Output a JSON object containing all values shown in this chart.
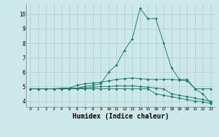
{
  "bg_color": "#cce8e8",
  "grid_color": "#aacccc",
  "line_color": "#1a7a6e",
  "xlabel": "Humidex (Indice chaleur)",
  "xlabel_fontsize": 7,
  "ytick_labels": [
    "4",
    "5",
    "6",
    "7",
    "8",
    "9",
    "10"
  ],
  "ytick_vals": [
    4,
    5,
    6,
    7,
    8,
    9,
    10
  ],
  "xtick_labels": [
    "0",
    "1",
    "2",
    "3",
    "4",
    "5",
    "6",
    "7",
    "8",
    "9",
    "10",
    "11",
    "12",
    "13",
    "14",
    "15",
    "16",
    "17",
    "18",
    "19",
    "20",
    "21",
    "22",
    "23"
  ],
  "ylim": [
    3.6,
    10.7
  ],
  "xlim": [
    -0.5,
    23.5
  ],
  "series": [
    [
      4.85,
      4.85,
      4.85,
      4.85,
      4.9,
      4.9,
      4.9,
      5.0,
      5.1,
      5.2,
      6.0,
      6.5,
      7.5,
      8.3,
      10.4,
      9.7,
      9.7,
      8.0,
      6.3,
      5.5,
      5.5,
      4.85,
      4.5,
      3.85
    ],
    [
      4.85,
      4.85,
      4.85,
      4.85,
      4.85,
      4.9,
      5.1,
      5.2,
      5.25,
      5.3,
      5.4,
      5.5,
      5.55,
      5.6,
      5.55,
      5.5,
      5.5,
      5.5,
      5.5,
      5.45,
      5.4,
      4.85,
      4.85,
      4.85
    ],
    [
      4.85,
      4.85,
      4.85,
      4.85,
      4.85,
      4.85,
      4.9,
      4.9,
      4.95,
      5.0,
      5.0,
      5.05,
      5.05,
      5.05,
      5.0,
      4.95,
      4.9,
      4.85,
      4.5,
      4.4,
      4.3,
      4.2,
      4.1,
      4.0
    ],
    [
      4.85,
      4.85,
      4.85,
      4.85,
      4.85,
      4.85,
      4.85,
      4.85,
      4.85,
      4.85,
      4.85,
      4.85,
      4.85,
      4.85,
      4.85,
      4.85,
      4.5,
      4.4,
      4.3,
      4.2,
      4.1,
      4.0,
      3.95,
      3.85
    ]
  ]
}
